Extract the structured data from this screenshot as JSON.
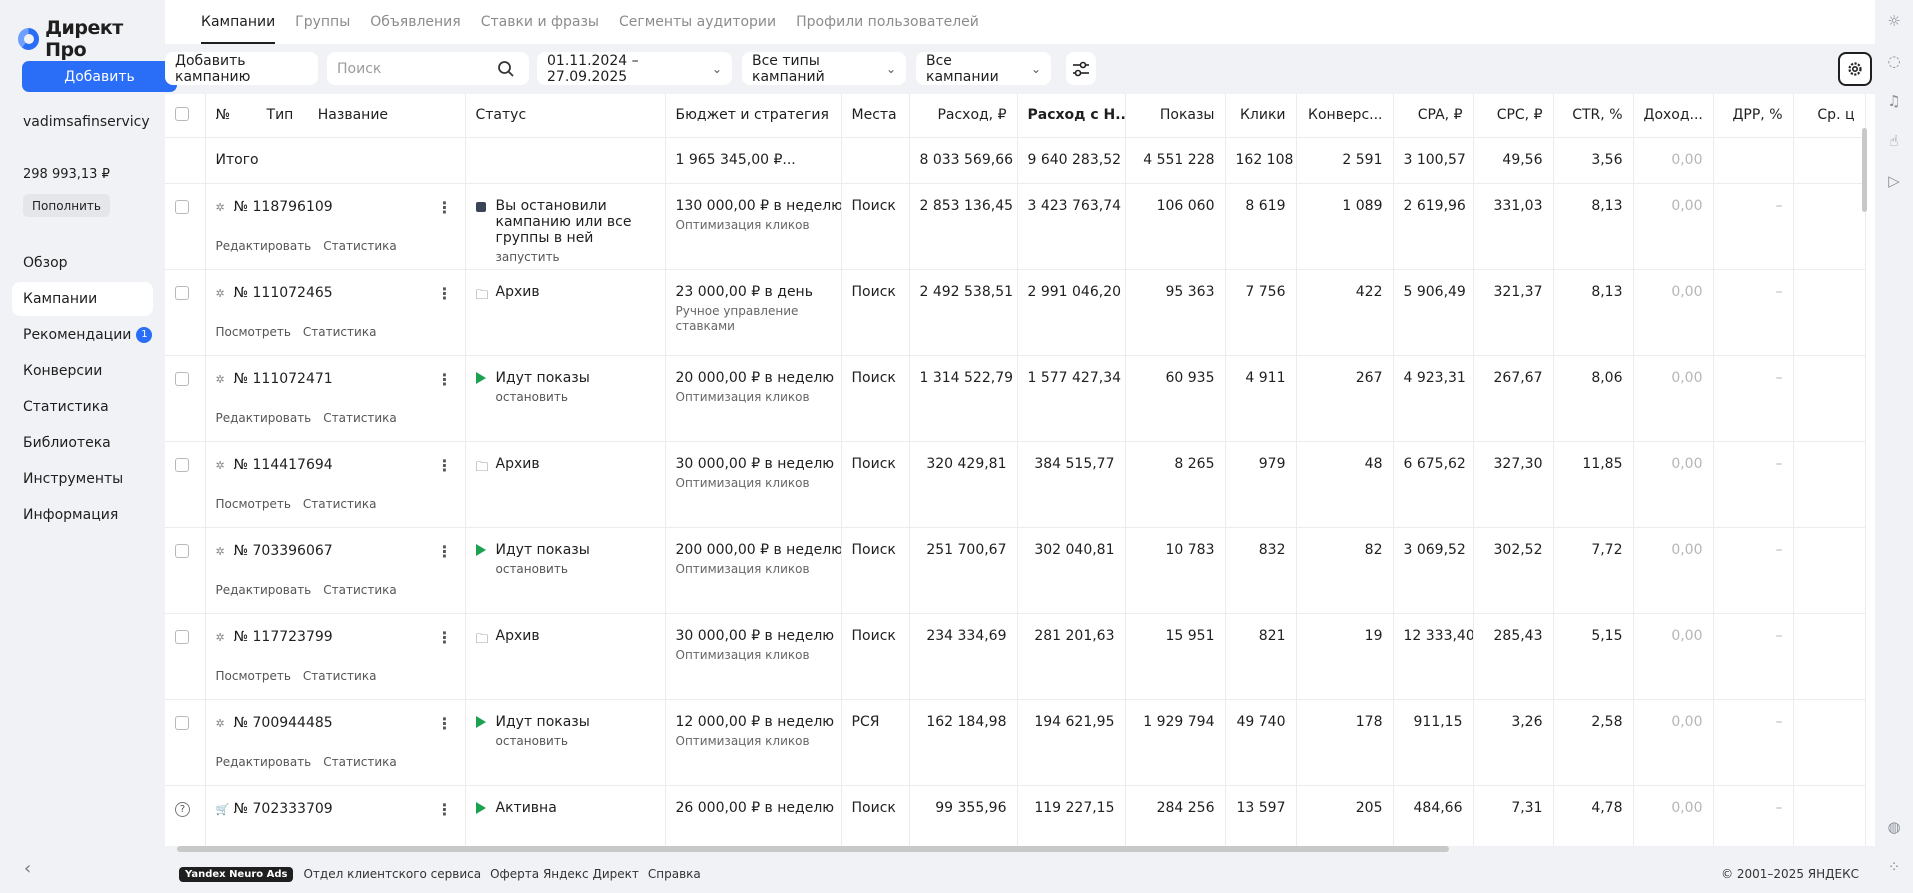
{
  "app": {
    "logo": "Директ Про"
  },
  "sidebar": {
    "add_label": "Добавить",
    "account": "vadimsafinservicy",
    "balance": "298 993,13 ₽",
    "topup_label": "Пополнить",
    "nav": [
      {
        "label": "Обзор",
        "active": false
      },
      {
        "label": "Кампании",
        "active": true
      },
      {
        "label": "Рекомендации",
        "active": false,
        "badge": "1"
      },
      {
        "label": "Конверсии",
        "active": false
      },
      {
        "label": "Статистика",
        "active": false
      },
      {
        "label": "Библиотека",
        "active": false
      },
      {
        "label": "Инструменты",
        "active": false
      },
      {
        "label": "Информация",
        "active": false
      }
    ],
    "collapse_icon": "chevron-left-icon"
  },
  "tabs": [
    "Кампании",
    "Группы",
    "Объявления",
    "Ставки и фразы",
    "Сегменты аудитории",
    "Профили пользователей"
  ],
  "toolbar": {
    "add_campaign": "Добавить кампанию",
    "search_placeholder": "Поиск",
    "date_range": "01.11.2024 – 27.09.2025",
    "types": "Все типы кампаний",
    "campaigns": "Все кампании"
  },
  "table": {
    "headers": {
      "num": "№",
      "type": "Тип",
      "name": "Название",
      "status": "Статус",
      "budget": "Бюджет и стратегия",
      "places": "Места",
      "spend": "Расход, ₽",
      "spend_vat": "Расход с Н...",
      "shows": "Показы",
      "clicks": "Клики",
      "conv": "Конверс...",
      "cpa": "CPA, ₽",
      "cpc": "CPC, ₽",
      "ctr": "CTR, %",
      "income": "Доход...",
      "drr": "ДРР, %",
      "avg": "Ср. ц"
    },
    "total": {
      "label": "Итого",
      "budget": "1 965 345,00 ₽...",
      "spend": "8 033 569,66",
      "spend_vat": "9 640 283,52",
      "shows": "4 551 228",
      "clicks": "162 108",
      "conv": "2 591",
      "cpa": "3 100,57",
      "cpc": "49,56",
      "ctr": "3,56",
      "income": "0,00"
    },
    "rows": [
      {
        "id": "№ 118796109",
        "link1": "Редактировать",
        "link2": "Статистика",
        "status": "Вы остановили кампанию или все группы в ней",
        "status_sub": "запустить",
        "budget": "130 000,00 ₽ в неделю",
        "strategy": "Оптимизация кликов",
        "places": "Поиск",
        "spend": "2 853 136,45",
        "spend_vat": "3 423 763,74",
        "shows": "106 060",
        "clicks": "8 619",
        "conv": "1 089",
        "cpa": "2 619,96",
        "cpc": "331,03",
        "ctr": "8,13",
        "income": "0,00",
        "drr": "–"
      },
      {
        "id": "№ 111072465",
        "link1": "Посмотреть",
        "link2": "Статистика",
        "status": "Архив",
        "status_sub": "",
        "budget": "23 000,00 ₽ в день",
        "strategy": "Ручное управление ставками",
        "places": "Поиск",
        "spend": "2 492 538,51",
        "spend_vat": "2 991 046,20",
        "shows": "95 363",
        "clicks": "7 756",
        "conv": "422",
        "cpa": "5 906,49",
        "cpc": "321,37",
        "ctr": "8,13",
        "income": "0,00",
        "drr": "–"
      },
      {
        "id": "№ 111072471",
        "link1": "Редактировать",
        "link2": "Статистика",
        "status": "Идут показы",
        "status_sub": "остановить",
        "budget": "20 000,00 ₽ в неделю",
        "strategy": "Оптимизация кликов",
        "places": "Поиск",
        "spend": "1 314 522,79",
        "spend_vat": "1 577 427,34",
        "shows": "60 935",
        "clicks": "4 911",
        "conv": "267",
        "cpa": "4 923,31",
        "cpc": "267,67",
        "ctr": "8,06",
        "income": "0,00",
        "drr": "–"
      },
      {
        "id": "№ 114417694",
        "link1": "Посмотреть",
        "link2": "Статистика",
        "status": "Архив",
        "status_sub": "",
        "budget": "30 000,00 ₽ в неделю",
        "strategy": "Оптимизация кликов",
        "places": "Поиск",
        "spend": "320 429,81",
        "spend_vat": "384 515,77",
        "shows": "8 265",
        "clicks": "979",
        "conv": "48",
        "cpa": "6 675,62",
        "cpc": "327,30",
        "ctr": "11,85",
        "income": "0,00",
        "drr": "–"
      },
      {
        "id": "№ 703396067",
        "link1": "Редактировать",
        "link2": "Статистика",
        "status": "Идут показы",
        "status_sub": "остановить",
        "budget": "200 000,00 ₽ в неделю",
        "strategy": "Оптимизация кликов",
        "places": "Поиск",
        "spend": "251 700,67",
        "spend_vat": "302 040,81",
        "shows": "10 783",
        "clicks": "832",
        "conv": "82",
        "cpa": "3 069,52",
        "cpc": "302,52",
        "ctr": "7,72",
        "income": "0,00",
        "drr": "–"
      },
      {
        "id": "№ 117723799",
        "link1": "Посмотреть",
        "link2": "Статистика",
        "status": "Архив",
        "status_sub": "",
        "budget": "30 000,00 ₽ в неделю",
        "strategy": "Оптимизация кликов",
        "places": "Поиск",
        "spend": "234 334,69",
        "spend_vat": "281 201,63",
        "shows": "15 951",
        "clicks": "821",
        "conv": "19",
        "cpa": "12 333,40",
        "cpc": "285,43",
        "ctr": "5,15",
        "income": "0,00",
        "drr": "–"
      },
      {
        "id": "№ 700944485",
        "link1": "Редактировать",
        "link2": "Статистика",
        "status": "Идут показы",
        "status_sub": "остановить",
        "budget": "12 000,00 ₽ в неделю",
        "strategy": "Оптимизация кликов",
        "places": "РСЯ",
        "spend": "162 184,98",
        "spend_vat": "194 621,95",
        "shows": "1 929 794",
        "clicks": "49 740",
        "conv": "178",
        "cpa": "911,15",
        "cpc": "3,26",
        "ctr": "2,58",
        "income": "0,00",
        "drr": "–"
      },
      {
        "id": "№ 702333709",
        "link1": "",
        "link2": "",
        "status": "Активна",
        "status_sub": "",
        "budget": "26 000,00 ₽ в неделю",
        "strategy": "",
        "places": "Поиск",
        "spend": "99 355,96",
        "spend_vat": "119 227,15",
        "shows": "284 256",
        "clicks": "13 597",
        "conv": "205",
        "cpa": "484,66",
        "cpc": "7,31",
        "ctr": "4,78",
        "income": "0,00",
        "drr": "–"
      }
    ]
  },
  "footer": {
    "badge": "Yandex Neuro Ads",
    "links": [
      "Отдел клиентского сервиса",
      "Оферта Яндекс Директ",
      "Справка"
    ],
    "copyright": "© 2001–2025 ЯНДЕКС"
  },
  "rail": [
    "alert-icon",
    "chat-icon",
    "bell-icon",
    "thumbs-up-icon",
    "play-icon",
    "globe-icon",
    "apps-icon"
  ]
}
